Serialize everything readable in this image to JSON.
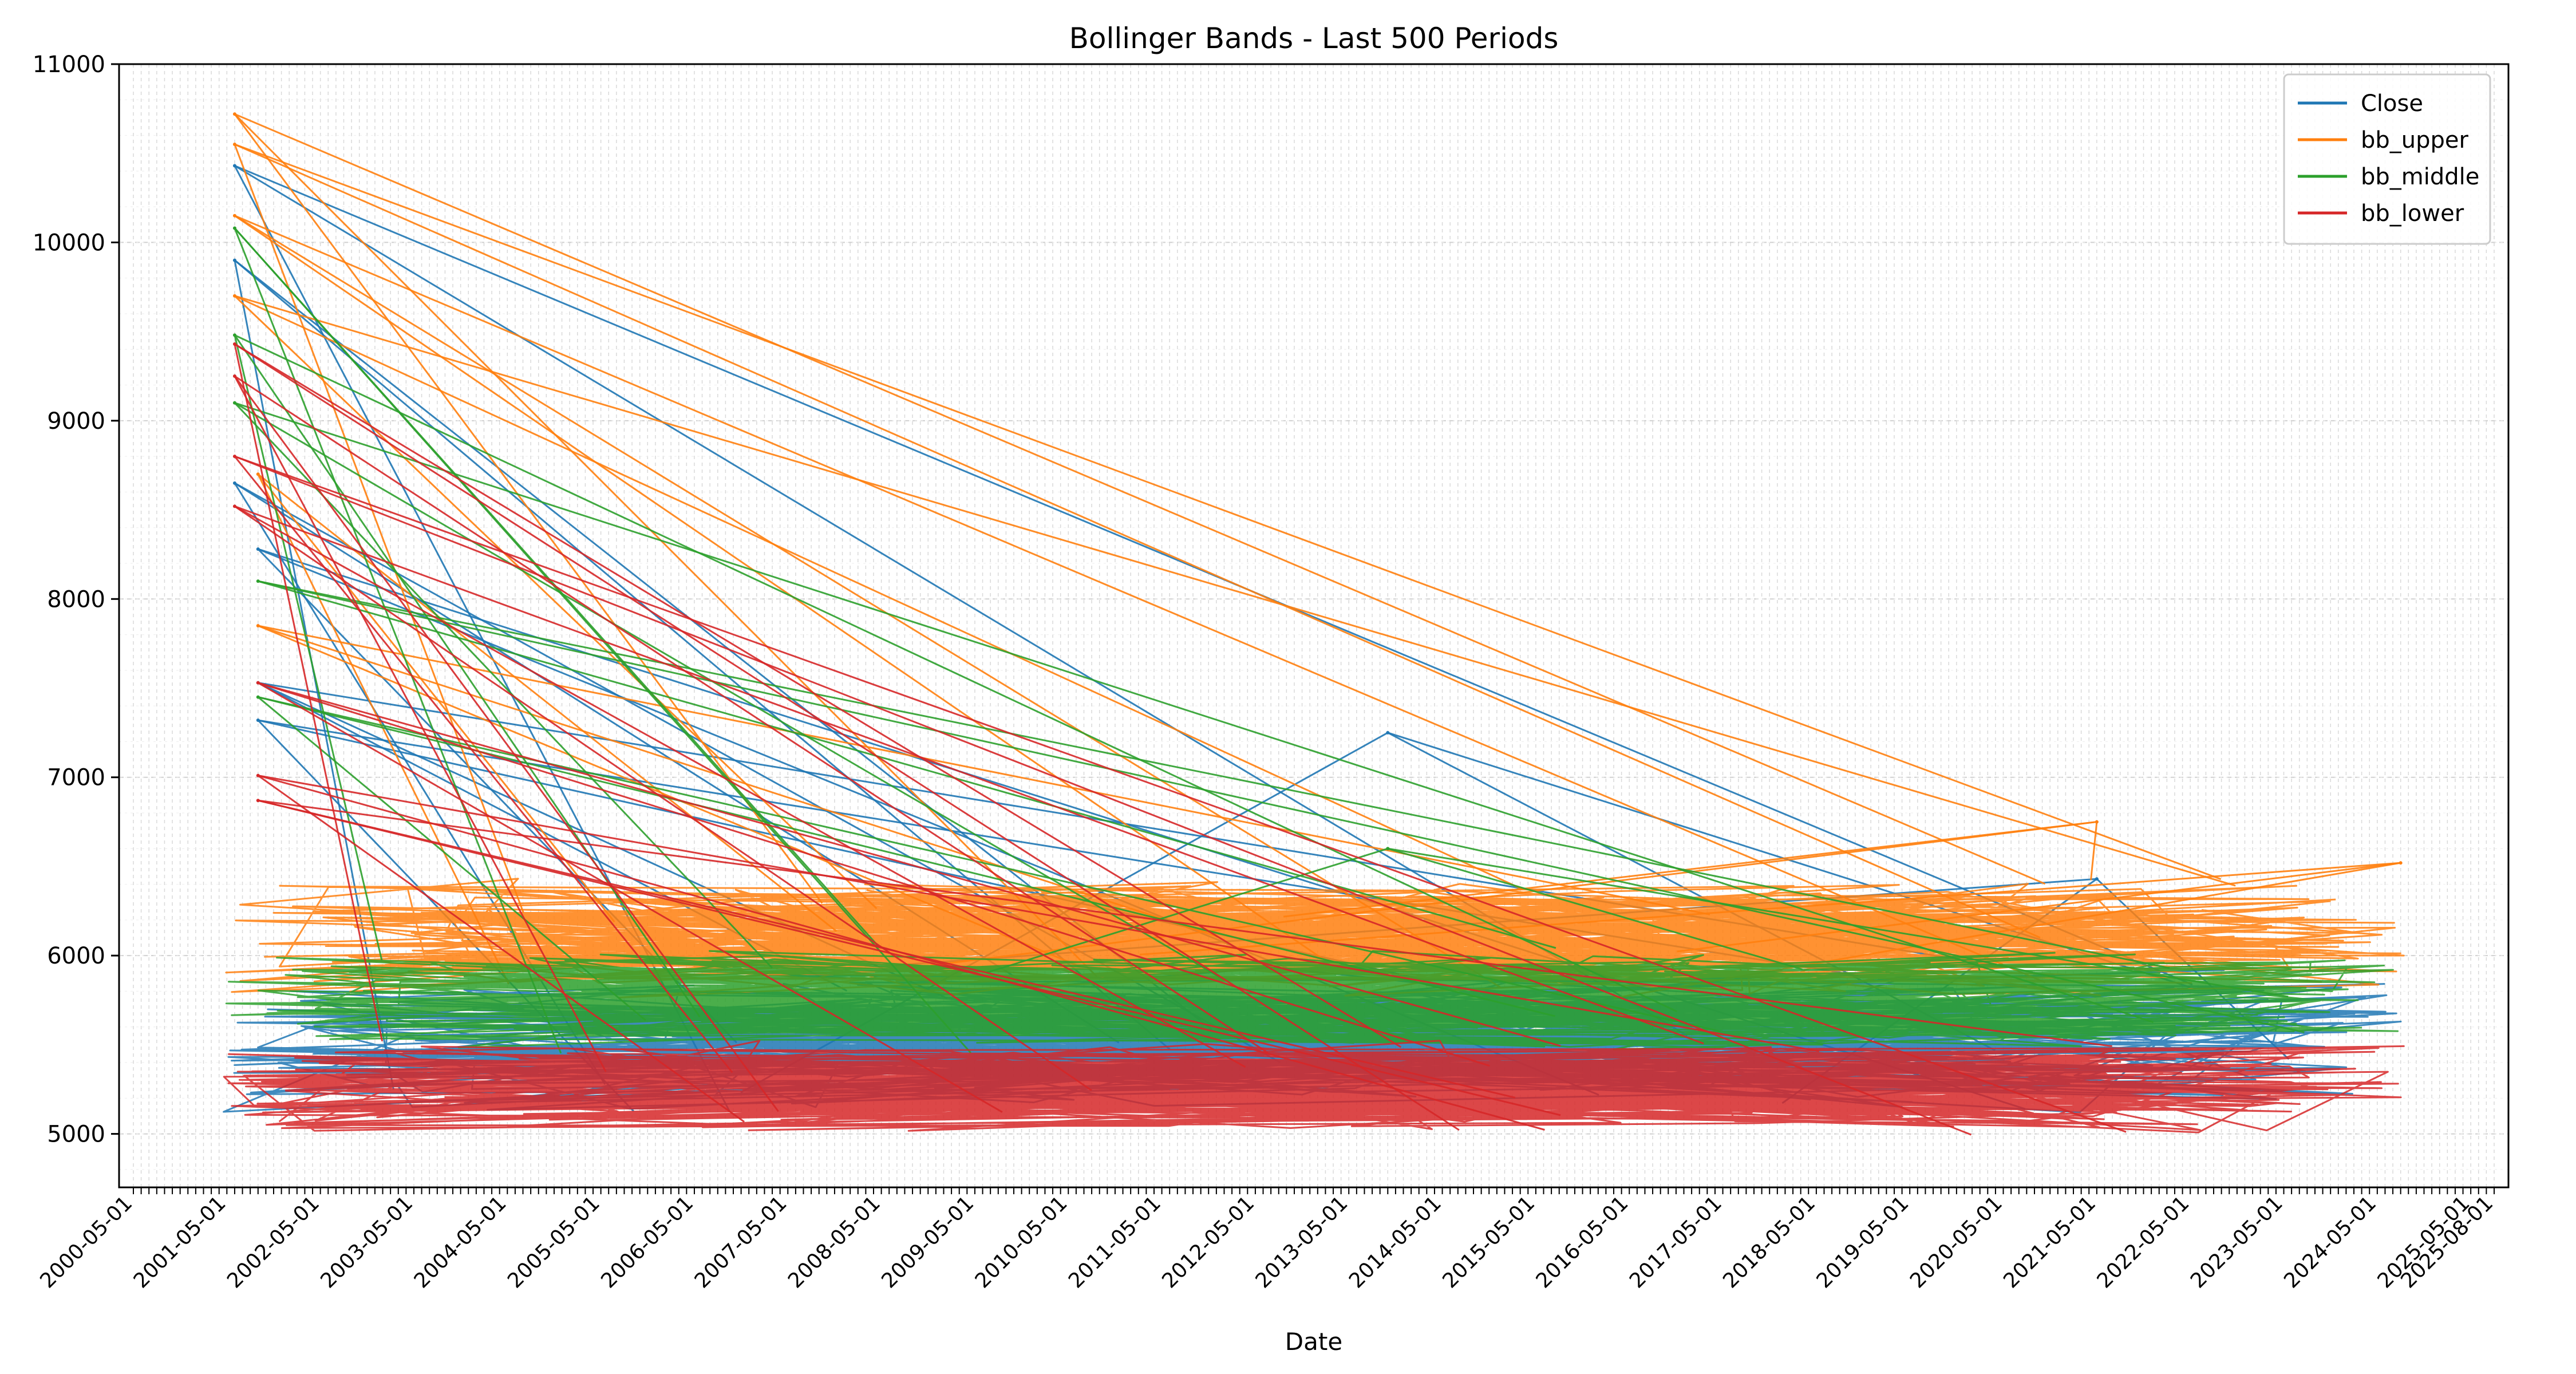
{
  "chart_data": {
    "type": "line",
    "title": "Bollinger Bands - Last 500 Periods",
    "xlabel": "Date",
    "ylabel": "",
    "ylim": [
      4700,
      11000
    ],
    "yticks": [
      5000,
      6000,
      7000,
      8000,
      9000,
      10000,
      11000
    ],
    "xlim": [
      "2000-05-01",
      "2025-08-01"
    ],
    "x_tick_first": "2000-05-01",
    "x_tick_last": "2025-08-01",
    "x_tick_count": 304,
    "grid": true,
    "legend_position": "upper right",
    "note": "Values are unsorted by date, so the lines zig-zag across the full axis; the series are summarized by their band ranges and a handful of visible extreme points.",
    "series": [
      {
        "name": "Close",
        "color": "#1f77b4",
        "typical_range": [
          5100,
          5950
        ],
        "peaks": [
          {
            "x": "2001-06-01",
            "y": 10430
          },
          {
            "x": "2001-06-01",
            "y": 9900
          },
          {
            "x": "2001-06-01",
            "y": 8650
          },
          {
            "x": "2001-09-01",
            "y": 8280
          },
          {
            "x": "2001-09-01",
            "y": 7530
          },
          {
            "x": "2001-09-01",
            "y": 7320
          },
          {
            "x": "2013-10-01",
            "y": 7250
          },
          {
            "x": "2021-05-01",
            "y": 6430
          }
        ]
      },
      {
        "name": "bb_upper",
        "color": "#ff7f0e",
        "typical_range": [
          5750,
          6450
        ],
        "peaks": [
          {
            "x": "2001-06-01",
            "y": 10720
          },
          {
            "x": "2001-06-01",
            "y": 10550
          },
          {
            "x": "2001-06-01",
            "y": 10150
          },
          {
            "x": "2001-06-01",
            "y": 9700
          },
          {
            "x": "2001-09-01",
            "y": 8700
          },
          {
            "x": "2001-09-01",
            "y": 7850
          },
          {
            "x": "2021-05-01",
            "y": 6750
          },
          {
            "x": "2024-08-01",
            "y": 6520
          }
        ]
      },
      {
        "name": "bb_middle",
        "color": "#2ca02c",
        "typical_range": [
          5450,
          6050
        ],
        "peaks": [
          {
            "x": "2001-06-01",
            "y": 10080
          },
          {
            "x": "2001-06-01",
            "y": 9480
          },
          {
            "x": "2001-06-01",
            "y": 9100
          },
          {
            "x": "2001-09-01",
            "y": 8100
          },
          {
            "x": "2001-09-01",
            "y": 7450
          },
          {
            "x": "2013-10-01",
            "y": 6600
          }
        ]
      },
      {
        "name": "bb_lower",
        "color": "#d62728",
        "typical_range": [
          4980,
          5550
        ],
        "peaks": [
          {
            "x": "2001-06-01",
            "y": 9430
          },
          {
            "x": "2001-06-01",
            "y": 9250
          },
          {
            "x": "2001-06-01",
            "y": 8800
          },
          {
            "x": "2001-06-01",
            "y": 8520
          },
          {
            "x": "2001-09-01",
            "y": 7530
          },
          {
            "x": "2001-09-01",
            "y": 7010
          },
          {
            "x": "2001-09-01",
            "y": 6870
          }
        ]
      }
    ]
  }
}
